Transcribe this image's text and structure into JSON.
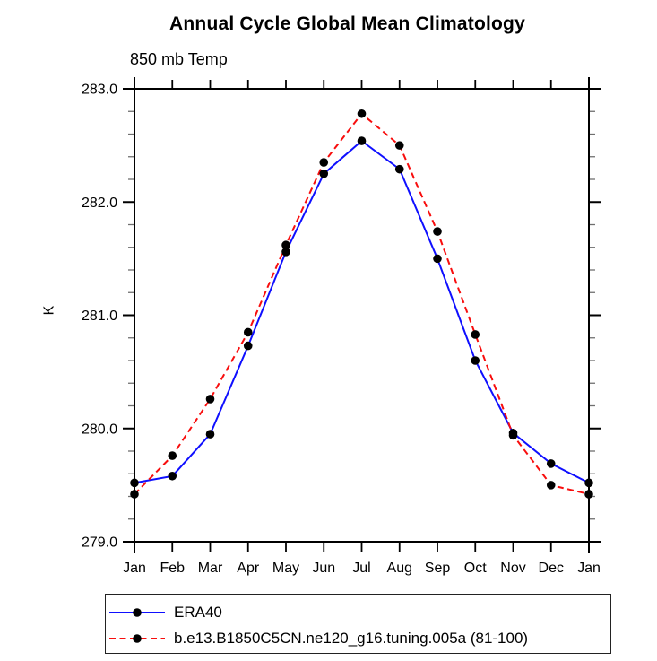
{
  "chart_data": {
    "type": "line",
    "title": "Annual Cycle Global Mean Climatology",
    "subtitle": "850 mb Temp",
    "ylabel": "K",
    "xlabel": "",
    "grid": false,
    "legend_position": "bottom-left-box",
    "categories": [
      "Jan",
      "Feb",
      "Mar",
      "Apr",
      "May",
      "Jun",
      "Jul",
      "Aug",
      "Sep",
      "Oct",
      "Nov",
      "Dec",
      "Jan"
    ],
    "ylim": [
      279.0,
      283.0
    ],
    "yticks_major": [
      279.0,
      280.0,
      281.0,
      282.0,
      283.0
    ],
    "ytick_labels": [
      "279.0",
      "280.0",
      "281.0",
      "282.0",
      "283.0"
    ],
    "ytick_minor_step": 0.2,
    "series": [
      {
        "name": "ERA40",
        "color": "#0f0fff",
        "line_style": "solid",
        "marker": "filled-circle",
        "marker_color": "#000000",
        "values": [
          279.52,
          279.58,
          279.95,
          280.73,
          281.56,
          282.25,
          282.54,
          282.29,
          281.5,
          280.6,
          279.96,
          279.69,
          279.52
        ]
      },
      {
        "name": "b.e13.B1850C5CN.ne120_g16.tuning.005a (81-100)",
        "color": "#f80d0d",
        "line_style": "dashed",
        "marker": "filled-circle",
        "marker_color": "#000000",
        "values": [
          279.42,
          279.76,
          280.26,
          280.85,
          281.62,
          282.35,
          282.78,
          282.5,
          281.74,
          280.83,
          279.94,
          279.5,
          279.42
        ]
      }
    ],
    "colors": {
      "frame": "#000000",
      "minor_tick": "#6f6f6f",
      "background": "#ffffff"
    }
  }
}
